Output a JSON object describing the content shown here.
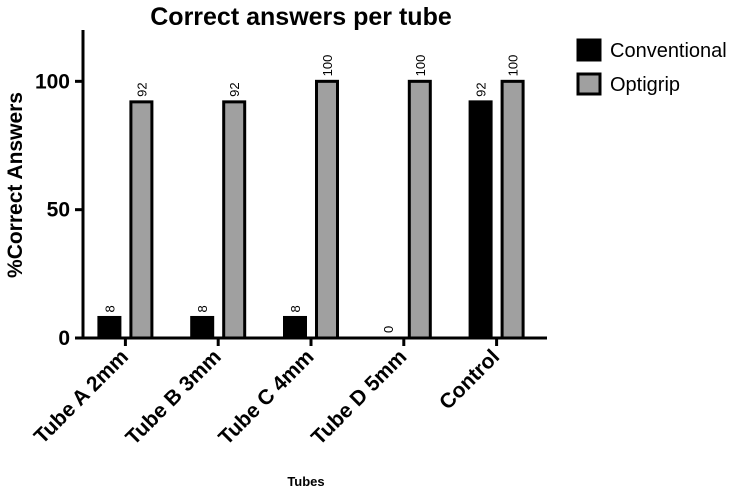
{
  "chart_data": {
    "type": "bar",
    "title": "Correct answers per tube",
    "xlabel": "Tubes",
    "ylabel": "%Correct Answers",
    "ylim": [
      0,
      120
    ],
    "yticks": [
      0,
      50,
      100
    ],
    "grid": false,
    "legend": "top-right",
    "categories": [
      "Tube A 2mm",
      "Tube B 3mm",
      "Tube C 4mm",
      "Tube D 5mm",
      "Control"
    ],
    "series": [
      {
        "name": "Conventional",
        "color": "#000000",
        "values": [
          8,
          8,
          8,
          0,
          92
        ]
      },
      {
        "name": "Optigrip",
        "color": "#a0a0a0",
        "values": [
          92,
          92,
          100,
          100,
          100
        ]
      }
    ]
  }
}
